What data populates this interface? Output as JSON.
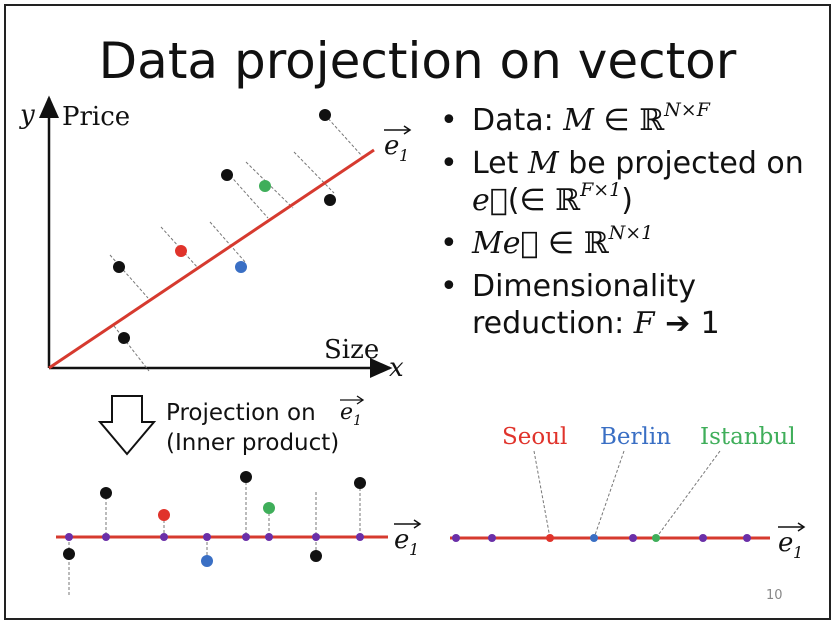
{
  "title": "Data projection on vector",
  "axes": {
    "y_symbol": "y",
    "y_label": "Price",
    "x_label": "Size",
    "x_symbol": "x"
  },
  "vector_label": "e",
  "vector_subscript": "1",
  "bullets": [
    {
      "prefix": "Data: ",
      "math": "M",
      "rel": " ∈ ",
      "set": "ℝ",
      "sup": "N×F"
    },
    {
      "line1_a": "Let ",
      "math": "M",
      "line1_b": " be projected on",
      "vec": "e⃗",
      "line2_a": "(∈ ",
      "set": "ℝ",
      "sup": "F×1",
      "line2_b": ")"
    },
    {
      "math": "M",
      "vec": "e⃗",
      "rel": " ∈ ",
      "set": "ℝ",
      "sup": "N×1"
    },
    {
      "line1": "Dimensionality",
      "line2_a": "reduction: ",
      "math": "F",
      "arrow": " ➔ ",
      "line2_b": "1"
    }
  ],
  "projection_caption": {
    "line1": "Projection on ",
    "line2": "(Inner product)"
  },
  "point_labels": {
    "seoul": "Seoul",
    "berlin": "Berlin",
    "istanbul": "Istanbul"
  },
  "colors": {
    "line": "#d63a2f",
    "seoul": "#e0332b",
    "berlin": "#3a6fc4",
    "istanbul": "#3fae5a",
    "point": "#111111",
    "projected": "#6a2fa8",
    "leader": "#777777"
  },
  "page_number": "10"
}
